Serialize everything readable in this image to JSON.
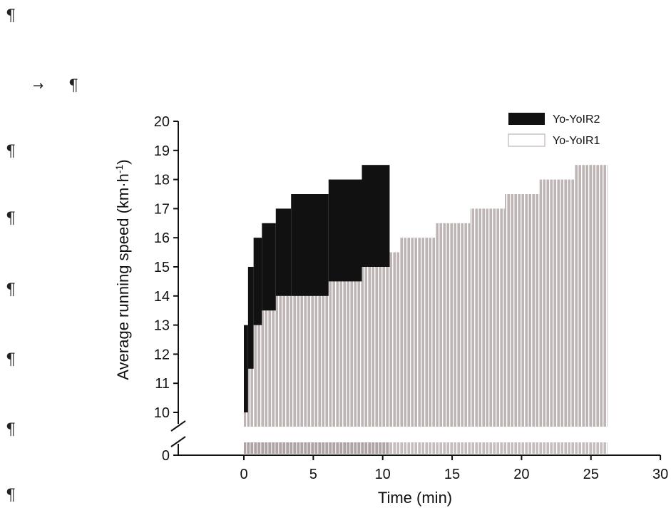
{
  "document": {
    "pilcrows": [
      "¶",
      "¶",
      "¶",
      "¶",
      "¶",
      "¶",
      "¶",
      "¶"
    ],
    "tab_arrow": "→"
  },
  "colors": {
    "yoyo_ir2": "#111111",
    "yoyo_ir1": "#bfb4b4",
    "stripe": "#ffffff",
    "axis": "#111111"
  },
  "chart_data": {
    "type": "bar",
    "title": "",
    "xlabel": "Time (min)",
    "ylabel": "Average running speed (km·h-1)",
    "ylabel_parts": {
      "main": "Average running speed (km·h",
      "sup": "-1",
      "close": ")"
    },
    "xlim": [
      -4,
      30
    ],
    "ylim_upper": [
      9.5,
      20
    ],
    "y_break": {
      "lower_tick": 0,
      "upper_start": 10
    },
    "x_ticks": [
      0,
      5,
      10,
      15,
      20,
      25,
      30
    ],
    "x_tick_labels": [
      "0",
      "5",
      "10",
      "15",
      "20",
      "25",
      "30"
    ],
    "y_ticks": [
      0,
      10,
      11,
      12,
      13,
      14,
      15,
      16,
      17,
      18,
      19,
      20
    ],
    "y_tick_labels": [
      "0",
      "10",
      "11",
      "12",
      "13",
      "14",
      "15",
      "16",
      "17",
      "18",
      "19",
      "20"
    ],
    "legend": {
      "position": "top-right",
      "entries": [
        "Yo-YoIR2",
        "Yo-YoIR1"
      ]
    },
    "series": [
      {
        "name": "Yo-YoIR2",
        "steps": [
          {
            "x0": 0.0,
            "x1": 0.3,
            "y": 13.0
          },
          {
            "x0": 0.3,
            "x1": 0.7,
            "y": 15.0
          },
          {
            "x0": 0.7,
            "x1": 1.3,
            "y": 16.0
          },
          {
            "x0": 1.3,
            "x1": 2.3,
            "y": 16.5
          },
          {
            "x0": 2.3,
            "x1": 3.4,
            "y": 17.0
          },
          {
            "x0": 3.4,
            "x1": 6.1,
            "y": 17.5
          },
          {
            "x0": 6.1,
            "x1": 8.5,
            "y": 18.0
          },
          {
            "x0": 8.5,
            "x1": 10.5,
            "y": 18.5
          }
        ]
      },
      {
        "name": "Yo-YoIR1",
        "steps": [
          {
            "x0": 0.0,
            "x1": 0.3,
            "y": 10.0
          },
          {
            "x0": 0.3,
            "x1": 0.6,
            "y": 11.5
          },
          {
            "x0": 0.6,
            "x1": 1.3,
            "y": 13.0
          },
          {
            "x0": 1.3,
            "x1": 2.3,
            "y": 13.5
          },
          {
            "x0": 2.3,
            "x1": 3.5,
            "y": 14.0
          },
          {
            "x0": 3.5,
            "x1": 6.2,
            "y": 14.5
          },
          {
            "x0": 6.2,
            "x1": 8.9,
            "y": 15.0
          },
          {
            "x0": 8.9,
            "x1": 11.2,
            "y": 15.5
          },
          {
            "x0": 11.2,
            "x1": 13.8,
            "y": 16.0
          },
          {
            "x0": 13.8,
            "x1": 16.3,
            "y": 16.5
          },
          {
            "x0": 16.3,
            "x1": 18.8,
            "y": 17.0
          },
          {
            "x0": 18.8,
            "x1": 21.3,
            "y": 17.5
          },
          {
            "x0": 21.3,
            "x1": 23.8,
            "y": 18.0
          },
          {
            "x0": 23.8,
            "x1": 26.2,
            "y": 18.5
          }
        ]
      }
    ]
  }
}
